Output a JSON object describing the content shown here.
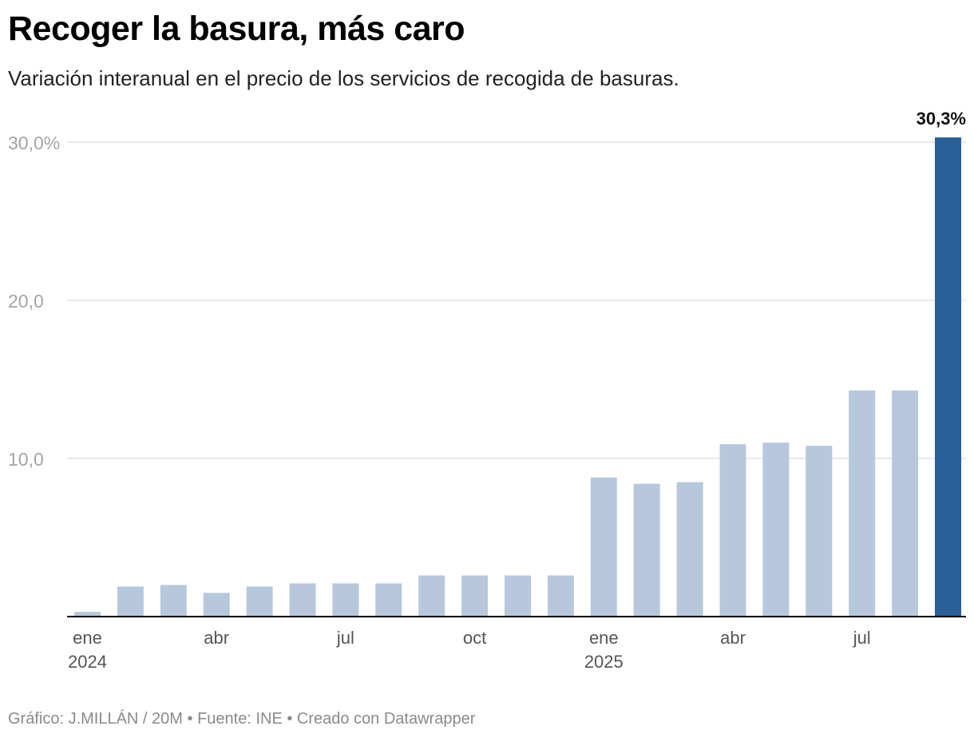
{
  "header": {
    "title": "Recoger la basura, más caro",
    "subtitle": "Variación interanual en el precio de los servicios de recogida de basuras."
  },
  "footer": {
    "credit": "Gráfico: J.MILLÁN / 20M • Fuente: INE • Creado con Datawrapper"
  },
  "colors": {
    "bar": "#b7c8dd",
    "highlight": "#2a5f98",
    "grid": "#e1e1e1",
    "axis": "#000000",
    "tick_label": "#a4a4a4",
    "x_label": "#555555"
  },
  "chart_data": {
    "type": "bar",
    "title": "Recoger la basura, más caro",
    "subtitle": "Variación interanual en el precio de los servicios de recogida de basuras.",
    "xlabel": "",
    "ylabel": "",
    "categories": [
      "ene 2024",
      "feb 2024",
      "mar 2024",
      "abr 2024",
      "may 2024",
      "jun 2024",
      "jul 2024",
      "ago 2024",
      "sep 2024",
      "oct 2024",
      "nov 2024",
      "dic 2024",
      "ene 2025",
      "feb 2025",
      "mar 2025",
      "abr 2025",
      "may 2025",
      "jun 2025",
      "jul 2025",
      "ago 2025",
      "sep 2025"
    ],
    "values": [
      0.3,
      1.9,
      2.0,
      1.5,
      1.9,
      2.1,
      2.1,
      2.1,
      2.6,
      2.6,
      2.6,
      2.6,
      8.8,
      8.4,
      8.5,
      10.9,
      11.0,
      10.8,
      14.3,
      14.3,
      30.3
    ],
    "highlight_index": 20,
    "highlight_label": "30,3%",
    "ylim": [
      0,
      30
    ],
    "y_ticks": [
      {
        "value": 10,
        "label": "10,0"
      },
      {
        "value": 20,
        "label": "20,0"
      },
      {
        "value": 30,
        "label": "30,0%"
      }
    ],
    "x_ticks": [
      {
        "index": 0,
        "label": "ene",
        "sub": "2024"
      },
      {
        "index": 3,
        "label": "abr",
        "sub": ""
      },
      {
        "index": 6,
        "label": "jul",
        "sub": ""
      },
      {
        "index": 9,
        "label": "oct",
        "sub": ""
      },
      {
        "index": 12,
        "label": "ene",
        "sub": "2025"
      },
      {
        "index": 15,
        "label": "abr",
        "sub": ""
      },
      {
        "index": 18,
        "label": "jul",
        "sub": ""
      }
    ],
    "grid": true,
    "legend": "none"
  }
}
